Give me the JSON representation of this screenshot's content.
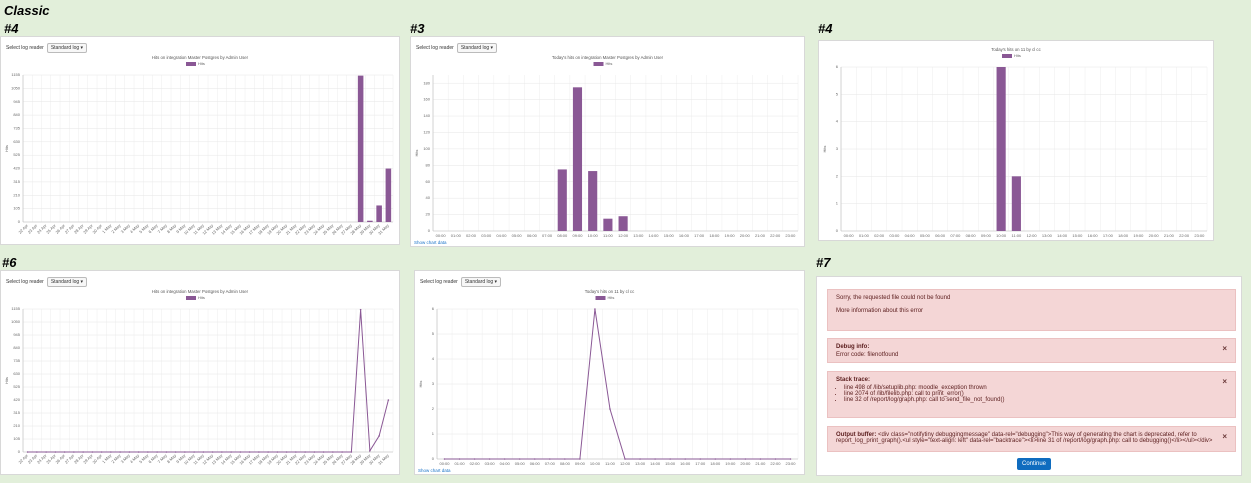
{
  "heading": "Classic",
  "panels": [
    {
      "label": "#4",
      "select_label": "Select log reader",
      "select_value": "Standard log"
    },
    {
      "label": "#3",
      "select_label": "Select log reader",
      "select_value": "Standard log",
      "link": "Show chart data"
    },
    {
      "label": "#4"
    },
    {
      "label": "#6",
      "select_label": "Select log reader",
      "select_value": "Standard log"
    },
    {
      "select_label": "Select log reader",
      "select_value": "Standard log",
      "link": "Show chart data"
    }
  ],
  "chart_data": [
    {
      "type": "bar",
      "title": "Hits on integration Master Postgres by Admin User",
      "ylabel": "Hits",
      "categories": [
        "22 Apr",
        "23 Apr",
        "24 Apr",
        "25 Apr",
        "26 Apr",
        "27 Apr",
        "28 Apr",
        "29 Apr",
        "30 Apr",
        "1 May",
        "2 May",
        "3 May",
        "4 May",
        "5 May",
        "6 May",
        "7 May",
        "8 May",
        "9 May",
        "10 May",
        "11 May",
        "12 May",
        "13 May",
        "14 May",
        "15 May",
        "16 May",
        "17 May",
        "18 May",
        "19 May",
        "20 May",
        "21 May",
        "22 May",
        "23 May",
        "24 May",
        "25 May",
        "26 May",
        "27 May",
        "28 May",
        "29 May",
        "30 May",
        "31 May"
      ],
      "series": [
        {
          "name": "Hits",
          "color": "#8a5895",
          "values": [
            0,
            0,
            0,
            0,
            0,
            0,
            0,
            0,
            0,
            0,
            0,
            0,
            0,
            0,
            0,
            0,
            0,
            0,
            0,
            0,
            0,
            0,
            0,
            0,
            0,
            0,
            0,
            0,
            0,
            0,
            0,
            0,
            0,
            0,
            0,
            0,
            1150,
            10,
            130,
            420
          ]
        }
      ],
      "ylim": [
        0,
        1155
      ],
      "yticks": [
        0,
        105,
        210,
        315,
        420,
        525,
        630,
        735,
        840,
        945,
        1050,
        1155
      ],
      "grid": true
    },
    {
      "type": "bar",
      "title": "Today's hits on integration Master Postgres by Admin User",
      "ylabel": "Hits",
      "categories": [
        "00:00",
        "01:00",
        "02:00",
        "03:00",
        "04:00",
        "05:00",
        "06:00",
        "07:00",
        "08:00",
        "09:00",
        "10:00",
        "11:00",
        "12:00",
        "13:00",
        "14:00",
        "15:00",
        "16:00",
        "17:00",
        "18:00",
        "19:00",
        "20:00",
        "21:00",
        "22:00",
        "23:00"
      ],
      "series": [
        {
          "name": "Hits",
          "color": "#8a5895",
          "values": [
            0,
            0,
            0,
            0,
            0,
            0,
            0,
            0,
            75,
            175,
            73,
            15,
            18,
            0,
            0,
            0,
            0,
            0,
            0,
            0,
            0,
            0,
            0,
            0
          ]
        }
      ],
      "ylim": [
        0,
        190
      ],
      "yticks": [
        0,
        20,
        40,
        60,
        80,
        100,
        120,
        140,
        160,
        180
      ],
      "grid": true
    },
    {
      "type": "bar",
      "title": "Today's hits on 11 by cl cc",
      "ylabel": "Hits",
      "categories": [
        "00:00",
        "01:00",
        "02:00",
        "03:00",
        "04:00",
        "05:00",
        "06:00",
        "07:00",
        "08:00",
        "09:00",
        "10:00",
        "11:00",
        "12:00",
        "13:00",
        "14:00",
        "15:00",
        "16:00",
        "17:00",
        "18:00",
        "19:00",
        "20:00",
        "21:00",
        "22:00",
        "23:00"
      ],
      "series": [
        {
          "name": "Hits",
          "color": "#8a5895",
          "values": [
            0,
            0,
            0,
            0,
            0,
            0,
            0,
            0,
            0,
            0,
            6,
            2,
            0,
            0,
            0,
            0,
            0,
            0,
            0,
            0,
            0,
            0,
            0,
            0
          ]
        }
      ],
      "ylim": [
        0,
        6
      ],
      "yticks": [
        0,
        1,
        2,
        3,
        4,
        5,
        6
      ],
      "grid": true
    },
    {
      "type": "line",
      "title": "Hits on integration Master Postgres by Admin User",
      "ylabel": "Hits",
      "categories": [
        "22 Apr",
        "23 Apr",
        "24 Apr",
        "25 Apr",
        "26 Apr",
        "27 Apr",
        "28 Apr",
        "29 Apr",
        "30 Apr",
        "1 May",
        "2 May",
        "3 May",
        "4 May",
        "5 May",
        "6 May",
        "7 May",
        "8 May",
        "9 May",
        "10 May",
        "11 May",
        "12 May",
        "13 May",
        "14 May",
        "15 May",
        "16 May",
        "17 May",
        "18 May",
        "19 May",
        "20 May",
        "21 May",
        "22 May",
        "23 May",
        "24 May",
        "25 May",
        "26 May",
        "27 May",
        "28 May",
        "29 May",
        "30 May",
        "31 May"
      ],
      "series": [
        {
          "name": "Hits",
          "color": "#8a5895",
          "values": [
            0,
            0,
            0,
            0,
            0,
            0,
            0,
            0,
            0,
            0,
            0,
            0,
            0,
            0,
            0,
            0,
            0,
            0,
            0,
            0,
            0,
            0,
            0,
            0,
            0,
            0,
            0,
            0,
            0,
            0,
            0,
            0,
            0,
            0,
            0,
            0,
            1150,
            10,
            130,
            420
          ]
        }
      ],
      "ylim": [
        0,
        1155
      ],
      "yticks": [
        0,
        105,
        210,
        315,
        420,
        525,
        630,
        735,
        840,
        945,
        1050,
        1155
      ],
      "grid": true
    },
    {
      "type": "line",
      "title": "Today's hits on 11 by cl cc",
      "ylabel": "Hits",
      "categories": [
        "00:00",
        "01:00",
        "02:00",
        "03:00",
        "04:00",
        "05:00",
        "06:00",
        "07:00",
        "08:00",
        "09:00",
        "10:00",
        "11:00",
        "12:00",
        "13:00",
        "14:00",
        "15:00",
        "16:00",
        "17:00",
        "18:00",
        "19:00",
        "20:00",
        "21:00",
        "22:00",
        "23:00"
      ],
      "series": [
        {
          "name": "Hits",
          "color": "#8a5895",
          "values": [
            0,
            0,
            0,
            0,
            0,
            0,
            0,
            0,
            0,
            0,
            6,
            2,
            0,
            0,
            0,
            0,
            0,
            0,
            0,
            0,
            0,
            0,
            0,
            0
          ]
        }
      ],
      "ylim": [
        0,
        6
      ],
      "yticks": [
        0,
        1,
        2,
        3,
        4,
        5,
        6
      ],
      "grid": true
    }
  ],
  "error_panel": {
    "label": "#7",
    "message": "Sorry, the requested file could not be found",
    "more": "More information about this error",
    "debug": {
      "title": "Debug info:",
      "text": "Error code: filenotfound"
    },
    "stack": {
      "title": "Stack trace:",
      "items": [
        "line 498 of /lib/setuplib.php: moodle_exception thrown",
        "line 2074 of /lib/filelib.php: call to print_error()",
        "line 32 of /report/log/graph.php: call to send_file_not_found()"
      ]
    },
    "output": {
      "title": "Output buffer:",
      "text": "<div class=\"notifytiny debuggingmessage\" data-rel=\"debugging\">This way of generating the chart is deprecated, refer to report_log_print_graph().<ul style=\"text-align: left\" data-rel=\"backtrace\"><li>line 31 of /report/log/graph.php: call to debugging()</li></ul></div>"
    },
    "button": "Continue"
  }
}
